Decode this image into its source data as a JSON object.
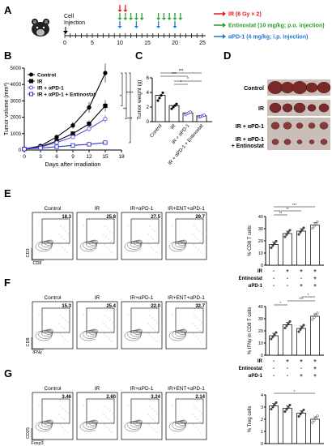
{
  "panels": {
    "A": "A",
    "B": "B",
    "C": "C",
    "D": "D",
    "E": "E",
    "F": "F",
    "G": "G"
  },
  "panelA": {
    "cell_injection": "Cell\nInjection",
    "timeline_ticks": [
      "0",
      "5",
      "10",
      "15",
      "20",
      "25"
    ],
    "legend": [
      {
        "text": "IR (6 Gy × 2)",
        "color": "#e31a1c"
      },
      {
        "text": "Entinostat (10 mg/kg; p.o. injection)",
        "color": "#2ca02c"
      },
      {
        "text": "αPD-1 (4 mg/kg; i.p. injection)",
        "color": "#1f78d1"
      }
    ],
    "ir_days": [
      10,
      11
    ],
    "entinostat_days": [
      10,
      11,
      12,
      13,
      14,
      17,
      18,
      19,
      20,
      21
    ],
    "pd1_days": [
      10,
      13,
      17,
      20
    ]
  },
  "chart_data": [
    {
      "panel": "B",
      "type": "line",
      "xlabel": "Days after irradiation",
      "ylabel": "Tumor volume (mm³)",
      "x": [
        0,
        3,
        6,
        9,
        12,
        15
      ],
      "xticks": [
        "0",
        "3",
        "6",
        "9",
        "12",
        "15",
        "18"
      ],
      "yticks": [
        "0",
        "1000",
        "2000",
        "3000",
        "4000",
        "5000"
      ],
      "ylim": [
        0,
        5000
      ],
      "xlim": [
        0,
        18
      ],
      "series": [
        {
          "name": "Control",
          "color": "#000000",
          "marker": "circle-filled",
          "values": [
            60,
            250,
            800,
            1500,
            2600,
            4700
          ]
        },
        {
          "name": "IR",
          "color": "#000000",
          "marker": "square-filled",
          "values": [
            60,
            200,
            550,
            1000,
            1600,
            2700
          ]
        },
        {
          "name": "IR + αPD-1",
          "color": "#5555dd",
          "marker": "circle-open",
          "values": [
            60,
            180,
            450,
            800,
            1300,
            1900
          ]
        },
        {
          "name": "IR + αPD-1 + Entinostat",
          "color": "#3333cc",
          "marker": "square-open",
          "values": [
            60,
            120,
            200,
            280,
            350,
            450
          ]
        }
      ],
      "significance": [
        "*",
        "**",
        "***",
        "****"
      ]
    },
    {
      "panel": "C",
      "type": "bar",
      "ylabel": "Tumor weight (g)",
      "categories": [
        "Control",
        "IR",
        "IR + αPD-1",
        "IR + αPD-1 + Entinostat"
      ],
      "values": [
        3.6,
        2.2,
        1.2,
        0.8
      ],
      "ylim": [
        0,
        6
      ],
      "yticks": [
        "0",
        "2",
        "4",
        "6"
      ],
      "significance": [
        "***",
        "***",
        "*",
        "*"
      ]
    },
    {
      "panel": "E",
      "type": "bar",
      "ylabel": "% CD8 T cells",
      "values": [
        17,
        26,
        28,
        33
      ],
      "ylim": [
        0,
        40
      ],
      "yticks": [
        "0",
        "10",
        "20",
        "30",
        "40"
      ],
      "significance": [
        "**",
        "**",
        "***"
      ]
    },
    {
      "panel": "F",
      "type": "bar",
      "ylabel": "% IFNγ in CD8 T cells",
      "values": [
        16,
        25,
        22,
        32
      ],
      "ylim": [
        0,
        40
      ],
      "yticks": [
        "0",
        "10",
        "20",
        "30",
        "40"
      ],
      "significance": [
        "*",
        "***",
        "*"
      ]
    },
    {
      "panel": "G",
      "type": "bar",
      "ylabel": "% Treg cells",
      "values": [
        3.1,
        2.9,
        2.5,
        2.0
      ],
      "ylim": [
        0,
        4
      ],
      "yticks": [
        "0",
        "1",
        "2",
        "3",
        "4"
      ],
      "significance": [
        "*"
      ]
    }
  ],
  "panelD": {
    "rows": [
      "Control",
      "IR",
      "IR + αPD-1",
      "IR + αPD-1\n+ Entinostat"
    ]
  },
  "flow": {
    "headers": [
      "Control",
      "IR",
      "IR+αPD-1",
      "IR+ENT+αPD-1"
    ],
    "E": {
      "ylabel": "CD3",
      "xlabel": "CD8",
      "values": [
        "18.3",
        "25.8",
        "27.5",
        "29.7"
      ]
    },
    "F": {
      "ylabel": "CD8",
      "xlabel": "IFNγ",
      "values": [
        "15.3",
        "25.4",
        "22.0",
        "32.7"
      ]
    },
    "G": {
      "ylabel": "CD25",
      "xlabel": "Foxp3",
      "values": [
        "3.46",
        "2.60",
        "3.24",
        "2.14"
      ]
    }
  },
  "treatment_table": {
    "rows": [
      {
        "label": "IR",
        "signs": [
          "-",
          "+",
          "+",
          "+"
        ]
      },
      {
        "label": "Entinostat",
        "signs": [
          "-",
          "-",
          "-",
          "+"
        ]
      },
      {
        "label": "αPD-1",
        "signs": [
          "-",
          "-",
          "+",
          "+"
        ]
      }
    ]
  }
}
